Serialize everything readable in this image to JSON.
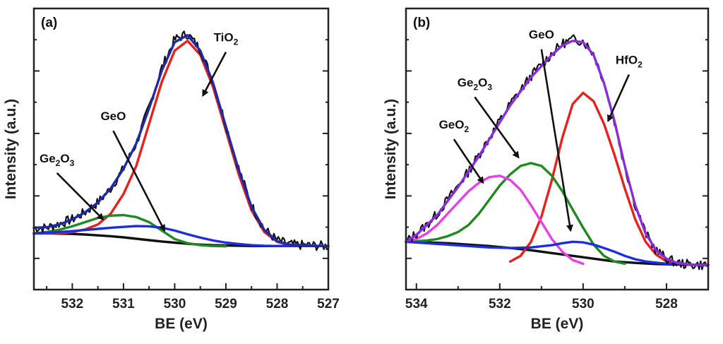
{
  "chart_data": [
    {
      "type": "line",
      "panel_label": "(a)",
      "xlabel": "BE (eV)",
      "ylabel": "Intensity (a.u.)",
      "xlim": [
        532.75,
        527.0
      ],
      "x_reversed": true,
      "ylim": [
        0,
        1
      ],
      "grid": false,
      "legend": "none",
      "x_ticks": [
        532,
        531,
        530,
        529,
        528,
        527
      ],
      "x_tick_labels": [
        "532",
        "531",
        "530",
        "529",
        "528",
        "527"
      ],
      "series": [
        {
          "role": "raw",
          "color": "#111111",
          "x": [
            532.75,
            532.5,
            532.25,
            532.0,
            531.75,
            531.5,
            531.25,
            531.0,
            530.75,
            530.5,
            530.25,
            530.0,
            529.75,
            529.5,
            529.25,
            529.0,
            528.75,
            528.5,
            528.25,
            528.0,
            527.75,
            527.5,
            527.25,
            527.0
          ],
          "y": [
            0.22,
            0.22,
            0.235,
            0.25,
            0.275,
            0.31,
            0.36,
            0.43,
            0.52,
            0.65,
            0.79,
            0.89,
            0.91,
            0.855,
            0.74,
            0.585,
            0.43,
            0.3,
            0.215,
            0.175,
            0.16,
            0.158,
            0.156,
            0.155
          ]
        },
        {
          "role": "envelope",
          "color": "#1f2aa8",
          "x": [
            532.75,
            532.5,
            532.25,
            532.0,
            531.75,
            531.5,
            531.25,
            531.0,
            530.75,
            530.5,
            530.25,
            530.0,
            529.75,
            529.5,
            529.25,
            529.0,
            528.75,
            528.5,
            528.25,
            528.0,
            527.75,
            527.5,
            527.25,
            527.0
          ],
          "y": [
            0.22,
            0.222,
            0.232,
            0.25,
            0.275,
            0.31,
            0.36,
            0.43,
            0.52,
            0.645,
            0.78,
            0.88,
            0.905,
            0.85,
            0.735,
            0.58,
            0.425,
            0.295,
            0.212,
            0.172,
            0.16,
            0.158,
            0.156,
            0.155
          ]
        },
        {
          "role": "component",
          "label": "TiO2",
          "color": "#e8211b",
          "x": [
            532.75,
            532.5,
            532.25,
            532.0,
            531.75,
            531.5,
            531.25,
            531.0,
            530.75,
            530.5,
            530.25,
            530.0,
            529.75,
            529.5,
            529.25,
            529.0,
            528.75,
            528.5,
            528.25,
            528.0,
            527.75,
            527.5,
            527.25,
            527.0
          ],
          "y": [
            0.2,
            0.2,
            0.201,
            0.205,
            0.214,
            0.232,
            0.27,
            0.34,
            0.44,
            0.59,
            0.74,
            0.85,
            0.885,
            0.835,
            0.72,
            0.565,
            0.41,
            0.282,
            0.205,
            0.17,
            0.158,
            0.156,
            0.155,
            0.155
          ]
        },
        {
          "role": "component",
          "label": "Ge2O3",
          "color": "#1f8a1f",
          "x": [
            532.75,
            532.5,
            532.25,
            532.0,
            531.75,
            531.5,
            531.25,
            531.0,
            530.75,
            530.5,
            530.25,
            530.0,
            529.75,
            529.5,
            529.25,
            529.0
          ],
          "y": [
            0.2,
            0.205,
            0.213,
            0.225,
            0.24,
            0.255,
            0.263,
            0.265,
            0.258,
            0.24,
            0.21,
            0.18,
            0.165,
            0.158,
            0.155,
            0.154
          ]
        },
        {
          "role": "component",
          "label": "GeO",
          "color": "#1b2ee0",
          "x": [
            532.75,
            532.5,
            532.25,
            532.0,
            531.75,
            531.5,
            531.25,
            531.0,
            530.75,
            530.5,
            530.25,
            530.0,
            529.75,
            529.5,
            529.25,
            529.0,
            528.75,
            528.5,
            528.25,
            528.0,
            527.75,
            527.5,
            527.25,
            527.0
          ],
          "y": [
            0.2,
            0.202,
            0.205,
            0.208,
            0.212,
            0.216,
            0.22,
            0.223,
            0.226,
            0.225,
            0.22,
            0.21,
            0.197,
            0.185,
            0.175,
            0.167,
            0.162,
            0.158,
            0.156,
            0.155,
            0.155,
            0.155,
            0.155,
            0.155
          ]
        },
        {
          "role": "background",
          "color": "#111111",
          "x": [
            532.75,
            532.5,
            532.25,
            532.0,
            531.75,
            531.5,
            531.25,
            531.0,
            530.75,
            530.5,
            530.25,
            530.0,
            529.75,
            529.5,
            529.25,
            529.0,
            528.75,
            528.5,
            528.25,
            528.0,
            527.75,
            527.5,
            527.25,
            527.0
          ],
          "y": [
            0.2,
            0.2,
            0.199,
            0.198,
            0.196,
            0.193,
            0.19,
            0.186,
            0.181,
            0.176,
            0.171,
            0.167,
            0.163,
            0.16,
            0.158,
            0.157,
            0.156,
            0.155,
            0.155,
            0.155,
            0.155,
            0.155,
            0.155,
            0.155
          ]
        }
      ],
      "annotations": [
        {
          "label": "TiO",
          "sub": "2",
          "tip": [
            529.45,
            0.69
          ],
          "text_at": [
            529.0,
            0.86
          ]
        },
        {
          "label": "GeO",
          "tip": [
            530.2,
            0.21
          ],
          "text_at": [
            531.2,
            0.58
          ]
        },
        {
          "label": "Ge",
          "sub": "2",
          "label2": "O",
          "sub2": "3",
          "tip": [
            531.4,
            0.25
          ],
          "text_at": [
            532.3,
            0.43
          ]
        }
      ]
    },
    {
      "type": "line",
      "panel_label": "(b)",
      "xlabel": "BE (eV)",
      "ylabel": "Intensity (a.u.)",
      "xlim": [
        534.25,
        527.0
      ],
      "x_reversed": true,
      "ylim": [
        0,
        1
      ],
      "grid": false,
      "legend": "none",
      "x_ticks": [
        534,
        532,
        530,
        528
      ],
      "x_tick_labels": [
        "534",
        "532",
        "530",
        "528"
      ],
      "series": [
        {
          "role": "raw",
          "color": "#111111",
          "x": [
            534.25,
            534.0,
            533.75,
            533.5,
            533.25,
            533.0,
            532.75,
            532.5,
            532.25,
            532.0,
            531.75,
            531.5,
            531.25,
            531.0,
            530.75,
            530.5,
            530.25,
            530.0,
            529.75,
            529.5,
            529.25,
            529.0,
            528.75,
            528.5,
            528.25,
            528.0,
            527.75,
            527.5,
            527.25,
            527.0
          ],
          "y": [
            0.17,
            0.2,
            0.23,
            0.27,
            0.32,
            0.37,
            0.42,
            0.48,
            0.54,
            0.6,
            0.66,
            0.71,
            0.76,
            0.8,
            0.84,
            0.875,
            0.89,
            0.885,
            0.84,
            0.74,
            0.6,
            0.44,
            0.3,
            0.2,
            0.14,
            0.11,
            0.095,
            0.09,
            0.088,
            0.088
          ]
        },
        {
          "role": "envelope",
          "color": "#8a2be2",
          "x": [
            534.25,
            534.0,
            533.75,
            533.5,
            533.25,
            533.0,
            532.75,
            532.5,
            532.25,
            532.0,
            531.75,
            531.5,
            531.25,
            531.0,
            530.75,
            530.5,
            530.25,
            530.0,
            529.75,
            529.5,
            529.25,
            529.0,
            528.75,
            528.5,
            528.25,
            528.0,
            527.75,
            527.5,
            527.25,
            527.0
          ],
          "y": [
            0.17,
            0.195,
            0.23,
            0.265,
            0.315,
            0.365,
            0.42,
            0.475,
            0.535,
            0.595,
            0.655,
            0.705,
            0.755,
            0.795,
            0.835,
            0.868,
            0.885,
            0.88,
            0.835,
            0.735,
            0.6,
            0.44,
            0.3,
            0.2,
            0.14,
            0.11,
            0.095,
            0.09,
            0.088,
            0.088
          ]
        },
        {
          "role": "component",
          "label": "HfO2",
          "color": "#e8211b",
          "x": [
            531.75,
            531.5,
            531.25,
            531.0,
            530.75,
            530.5,
            530.25,
            530.0,
            529.75,
            529.5,
            529.25,
            529.0,
            528.75,
            528.5,
            528.25,
            528.0,
            527.75,
            527.5,
            527.25,
            527.0
          ],
          "y": [
            0.1,
            0.12,
            0.17,
            0.26,
            0.39,
            0.54,
            0.66,
            0.7,
            0.67,
            0.59,
            0.48,
            0.36,
            0.25,
            0.17,
            0.125,
            0.1,
            0.092,
            0.089,
            0.088,
            0.088
          ]
        },
        {
          "role": "component",
          "label": "Ge2O3",
          "color": "#1f8a1f",
          "x": [
            534.25,
            534.0,
            533.75,
            533.5,
            533.25,
            533.0,
            532.75,
            532.5,
            532.25,
            532.0,
            531.75,
            531.5,
            531.25,
            531.0,
            530.75,
            530.5,
            530.25,
            530.0,
            529.75,
            529.5,
            529.25,
            529.0
          ],
          "y": [
            0.17,
            0.172,
            0.175,
            0.18,
            0.19,
            0.205,
            0.23,
            0.27,
            0.32,
            0.37,
            0.41,
            0.44,
            0.45,
            0.44,
            0.405,
            0.35,
            0.285,
            0.22,
            0.16,
            0.12,
            0.1,
            0.092
          ]
        },
        {
          "role": "component",
          "label": "GeO2",
          "color": "#e83fe8",
          "x": [
            534.25,
            534.0,
            533.75,
            533.5,
            533.25,
            533.0,
            532.75,
            532.5,
            532.25,
            532.0,
            531.75,
            531.5,
            531.25,
            531.0,
            530.75,
            530.5,
            530.25,
            530.0
          ],
          "y": [
            0.17,
            0.18,
            0.2,
            0.23,
            0.27,
            0.31,
            0.35,
            0.38,
            0.4,
            0.405,
            0.39,
            0.355,
            0.3,
            0.24,
            0.18,
            0.135,
            0.105,
            0.092
          ]
        },
        {
          "role": "component",
          "label": "GeO",
          "color": "#1b2ee0",
          "x": [
            534.25,
            533.75,
            533.25,
            532.75,
            532.25,
            531.75,
            531.25,
            530.75,
            530.5,
            530.25,
            530.0,
            529.75,
            529.5,
            529.25,
            529.0,
            528.75,
            528.5,
            528.0,
            527.5,
            527.0
          ],
          "y": [
            0.17,
            0.165,
            0.16,
            0.155,
            0.15,
            0.148,
            0.15,
            0.158,
            0.165,
            0.17,
            0.168,
            0.16,
            0.148,
            0.135,
            0.12,
            0.108,
            0.1,
            0.092,
            0.089,
            0.088
          ]
        },
        {
          "role": "background",
          "color": "#111111",
          "x": [
            534.25,
            533.75,
            533.25,
            532.75,
            532.25,
            531.75,
            531.25,
            530.75,
            530.25,
            529.75,
            529.25,
            528.75,
            528.25,
            527.75,
            527.25,
            527.0
          ],
          "y": [
            0.17,
            0.168,
            0.165,
            0.16,
            0.155,
            0.148,
            0.14,
            0.13,
            0.12,
            0.11,
            0.1,
            0.095,
            0.091,
            0.089,
            0.088,
            0.088
          ]
        }
      ],
      "annotations": [
        {
          "label": "HfO",
          "sub": "2",
          "tip": [
            529.4,
            0.6
          ],
          "text_at": [
            528.9,
            0.78
          ]
        },
        {
          "label": "GeO",
          "tip": [
            530.3,
            0.21
          ],
          "text_at": [
            531.0,
            0.87
          ]
        },
        {
          "label": "Ge",
          "sub": "2",
          "label2": "O",
          "sub2": "3",
          "tip": [
            531.55,
            0.47
          ],
          "text_at": [
            532.6,
            0.7
          ]
        },
        {
          "label": "GeO",
          "sub": "2",
          "tip": [
            532.4,
            0.38
          ],
          "text_at": [
            533.1,
            0.55
          ]
        }
      ]
    }
  ]
}
